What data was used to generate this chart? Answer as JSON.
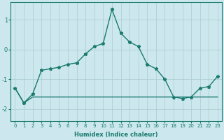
{
  "xlabel": "Humidex (Indice chaleur)",
  "ylabel": "",
  "background_color": "#cce8ee",
  "grid_color": "#aacccc",
  "line_color": "#1a7a6e",
  "xlim": [
    -0.5,
    23.5
  ],
  "ylim": [
    -2.4,
    1.6
  ],
  "yticks": [
    -2,
    -1,
    0,
    1
  ],
  "xticks": [
    0,
    1,
    2,
    3,
    4,
    5,
    6,
    7,
    8,
    9,
    10,
    11,
    12,
    13,
    14,
    15,
    16,
    17,
    18,
    19,
    20,
    21,
    22,
    23
  ],
  "series1_x": [
    0,
    1,
    2,
    3,
    4,
    5,
    6,
    7,
    8,
    9,
    10,
    11,
    12,
    13,
    14,
    15,
    16,
    17,
    18,
    19,
    20,
    21,
    22,
    23
  ],
  "series1_y": [
    -1.3,
    -1.8,
    -1.6,
    -1.6,
    -1.6,
    -1.6,
    -1.6,
    -1.6,
    -1.6,
    -1.6,
    -1.6,
    -1.6,
    -1.6,
    -1.6,
    -1.6,
    -1.6,
    -1.6,
    -1.6,
    -1.6,
    -1.6,
    -1.6,
    -1.6,
    -1.6,
    -1.6
  ],
  "series2_x": [
    0,
    1,
    2,
    3,
    4,
    5,
    6,
    7,
    8,
    9,
    10,
    11,
    12,
    13,
    14,
    15,
    16,
    17,
    18,
    19,
    20,
    21,
    22,
    23
  ],
  "series2_y": [
    -1.3,
    -1.8,
    -1.5,
    -0.7,
    -0.65,
    -0.6,
    -0.5,
    -0.45,
    -0.15,
    0.1,
    0.2,
    1.35,
    0.55,
    0.25,
    0.1,
    -0.5,
    -0.65,
    -1.0,
    -1.6,
    -1.65,
    -1.6,
    -1.3,
    -1.25,
    -0.9
  ],
  "marker": "*",
  "markersize": 3.5,
  "linewidth": 1.0
}
